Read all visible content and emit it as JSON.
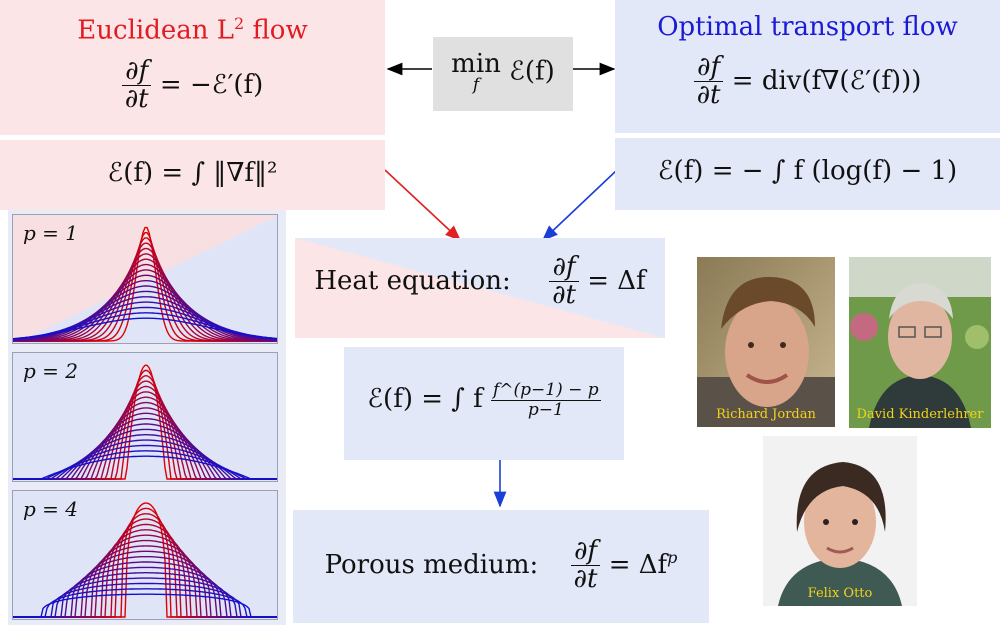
{
  "left_box": {
    "title_text": "Euclidean L",
    "title_sup": "2",
    "title_suffix": " flow",
    "flow_rhs": "= −ℰ′(f)",
    "energy": "ℰ(f) = ∫ ‖∇f‖²"
  },
  "center_box": {
    "min_text": "min",
    "min_sub": "f",
    "min_rhs": "ℰ(f)"
  },
  "right_box": {
    "title": "Optimal transport flow",
    "flow_rhs": "= div(f∇(ℰ′(f)))",
    "energy": "ℰ(f) = − ∫ f (log(f) − 1)"
  },
  "heat_box": {
    "label": "Heat equation:",
    "rhs": "= Δf"
  },
  "energy_p_box": {
    "lhs": "ℰ(f) = ∫ f",
    "num": "f^(p−1) − p",
    "den": "p−1"
  },
  "porous_box": {
    "label": "Porous medium:",
    "rhs": "= Δf",
    "sup": "p"
  },
  "frac_num": "∂f",
  "frac_den": "∂t",
  "panels": [
    {
      "label": "p = 1",
      "p": 1
    },
    {
      "label": "p = 2",
      "p": 2
    },
    {
      "label": "p = 4",
      "p": 4
    }
  ],
  "people": [
    {
      "name": "Richard Jordan"
    },
    {
      "name": "David Kinderlehrer"
    },
    {
      "name": "Felix Otto"
    }
  ],
  "colors": {
    "red_title": "#e11b22",
    "blue_title": "#1a1ad6",
    "pink_bg": "#fbe5e6",
    "blue_bg": "#e3e8f8",
    "arrow_red": "#e02020",
    "arrow_blue": "#1a3fd6",
    "curve_start": "#e00000",
    "curve_end": "#1010d0"
  }
}
